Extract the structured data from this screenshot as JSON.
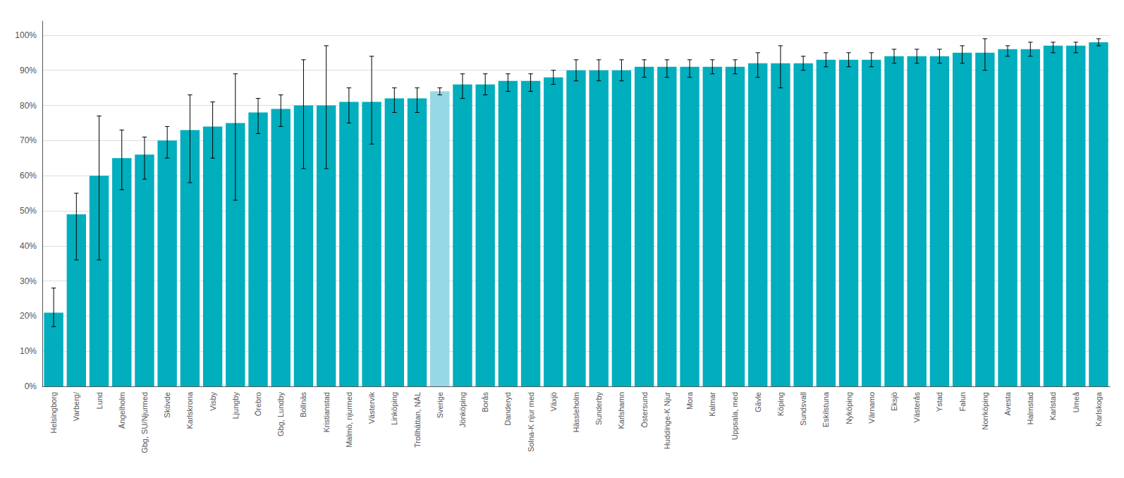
{
  "chart_data": {
    "type": "bar",
    "categories": [
      "Helsingborg",
      "Varberg/",
      "Lund",
      "Ängelholm",
      "Gbg, SU/Njurmed",
      "Skövde",
      "Karlskrona",
      "Visby",
      "Ljungby",
      "Örebro",
      "Gbg, Lundby",
      "Bollnäs",
      "Kristianstad",
      "Malmö, njurmed",
      "Västervik",
      "Linköping",
      "Trollhättan, NÄL",
      "Sverige",
      "Jönköping",
      "Borås",
      "Danderyd",
      "Solna-K njur med",
      "Växjö",
      "Hässleholm",
      "Sunderby",
      "Karlshamn",
      "Östersund",
      "Huddinge-K Njur",
      "Mora",
      "Kalmar",
      "Uppsala, med",
      "Gävle",
      "Köping",
      "Sundsvall",
      "Eskilstuna",
      "Nyköping",
      "Värnamo",
      "Eksjö",
      "Västerås",
      "Ystad",
      "Falun",
      "Norrköping",
      "Avesta",
      "Halmstad",
      "Karlstad",
      "Umeå",
      "Karlskoga"
    ],
    "values": [
      0.21,
      0.49,
      0.6,
      0.65,
      0.66,
      0.7,
      0.73,
      0.74,
      0.75,
      0.78,
      0.79,
      0.8,
      0.8,
      0.81,
      0.81,
      0.82,
      0.82,
      0.84,
      0.86,
      0.86,
      0.87,
      0.87,
      0.88,
      0.9,
      0.9,
      0.9,
      0.91,
      0.91,
      0.91,
      0.91,
      0.91,
      0.92,
      0.92,
      0.92,
      0.93,
      0.93,
      0.93,
      0.94,
      0.94,
      0.94,
      0.95,
      0.95,
      0.96,
      0.96,
      0.97,
      0.97,
      0.98
    ],
    "error_lower": [
      0.04,
      0.13,
      0.24,
      0.09,
      0.07,
      0.05,
      0.15,
      0.09,
      0.22,
      0.06,
      0.05,
      0.18,
      0.18,
      0.06,
      0.12,
      0.04,
      0.04,
      0.01,
      0.04,
      0.03,
      0.03,
      0.03,
      0.02,
      0.03,
      0.03,
      0.03,
      0.03,
      0.03,
      0.03,
      0.02,
      0.02,
      0.04,
      0.07,
      0.02,
      0.02,
      0.02,
      0.02,
      0.02,
      0.02,
      0.02,
      0.03,
      0.05,
      0.02,
      0.02,
      0.02,
      0.02,
      0.01
    ],
    "error_upper": [
      0.07,
      0.06,
      0.17,
      0.08,
      0.05,
      0.04,
      0.1,
      0.07,
      0.14,
      0.04,
      0.04,
      0.13,
      0.17,
      0.04,
      0.13,
      0.03,
      0.03,
      0.01,
      0.03,
      0.03,
      0.02,
      0.02,
      0.02,
      0.03,
      0.03,
      0.03,
      0.02,
      0.02,
      0.02,
      0.02,
      0.02,
      0.03,
      0.05,
      0.02,
      0.02,
      0.02,
      0.02,
      0.02,
      0.02,
      0.02,
      0.02,
      0.04,
      0.01,
      0.02,
      0.01,
      0.01,
      0.01
    ],
    "colors": [
      "#00AEBD",
      "#00AEBD",
      "#00AEBD",
      "#00AEBD",
      "#00AEBD",
      "#00AEBD",
      "#00AEBD",
      "#00AEBD",
      "#00AEBD",
      "#00AEBD",
      "#00AEBD",
      "#00AEBD",
      "#00AEBD",
      "#00AEBD",
      "#00AEBD",
      "#00AEBD",
      "#00AEBD",
      "#96D8E4",
      "#00AEBD",
      "#00AEBD",
      "#00AEBD",
      "#00AEBD",
      "#00AEBD",
      "#00AEBD",
      "#00AEBD",
      "#00AEBD",
      "#00AEBD",
      "#00AEBD",
      "#00AEBD",
      "#00AEBD",
      "#00AEBD",
      "#00AEBD",
      "#00AEBD",
      "#00AEBD",
      "#00AEBD",
      "#00AEBD",
      "#00AEBD",
      "#00AEBD",
      "#00AEBD",
      "#00AEBD",
      "#00AEBD",
      "#00AEBD",
      "#00AEBD",
      "#00AEBD",
      "#00AEBD",
      "#00AEBD",
      "#00AEBD"
    ],
    "ylim": [
      0.0,
      1.04
    ],
    "yticks": [
      {
        "value": 0,
        "label": "0%"
      },
      {
        "value": 0.1,
        "label": "10%"
      },
      {
        "value": 0.2,
        "label": "20%"
      },
      {
        "value": 0.3,
        "label": "30%"
      },
      {
        "value": 0.4,
        "label": "40%"
      },
      {
        "value": 0.5,
        "label": "50%"
      },
      {
        "value": 0.6,
        "label": "60%"
      },
      {
        "value": 0.7,
        "label": "70%"
      },
      {
        "value": 0.8,
        "label": "80%"
      },
      {
        "value": 0.9,
        "label": "90%"
      },
      {
        "value": 1.0,
        "label": "100%"
      }
    ],
    "grid": true
  }
}
